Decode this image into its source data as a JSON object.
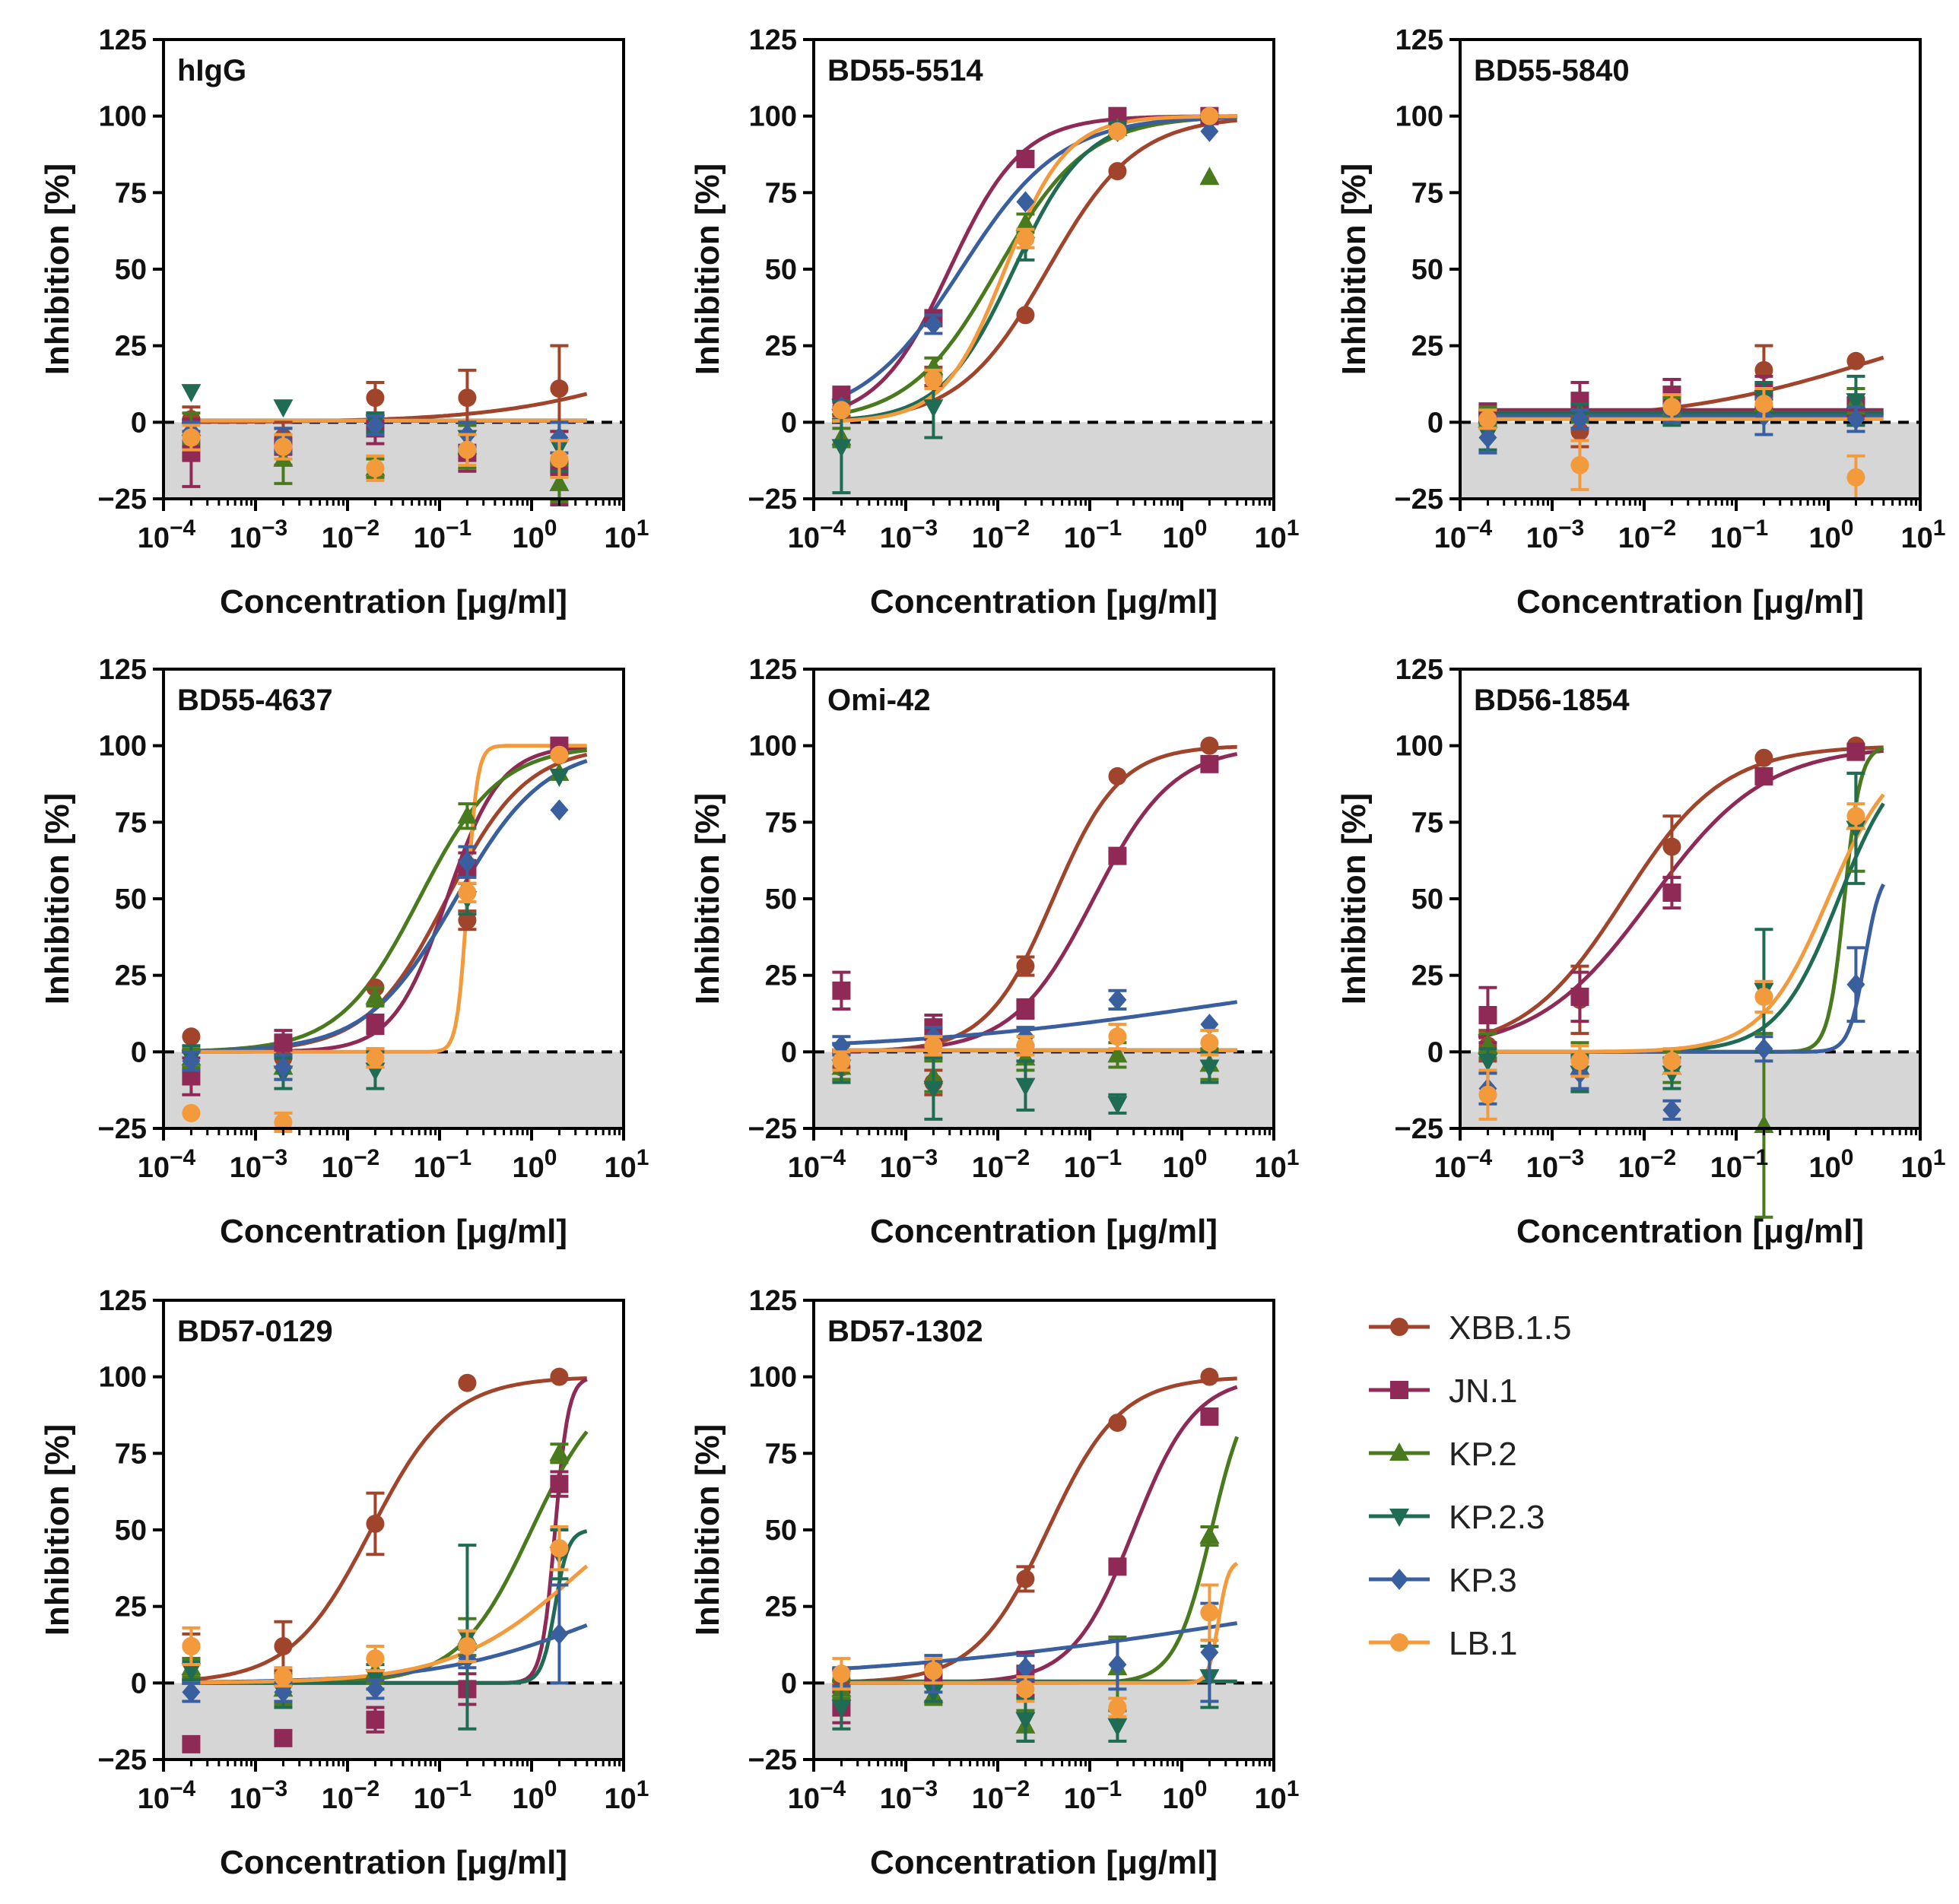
{
  "chart_data": {
    "type": "line",
    "series_styles": [
      {
        "name": "XBB.1.5",
        "color": "#a0442c",
        "marker": "circle"
      },
      {
        "name": "JN.1",
        "color": "#8e2a55",
        "marker": "square"
      },
      {
        "name": "KP.2",
        "color": "#4a7a1e",
        "marker": "triangle-up"
      },
      {
        "name": "KP.2.3",
        "color": "#1f6b54",
        "marker": "triangle-down"
      },
      {
        "name": "KP.3",
        "color": "#3a5f9e",
        "marker": "diamond"
      },
      {
        "name": "LB.1",
        "color": "#f39a3c",
        "marker": "circle"
      }
    ],
    "x_tick_labels": [
      {
        "base": "10",
        "exp": "−4"
      },
      {
        "base": "10",
        "exp": "−3"
      },
      {
        "base": "10",
        "exp": "−2"
      },
      {
        "base": "10",
        "exp": "−1"
      },
      {
        "base": "10",
        "exp": "0"
      },
      {
        "base": "10",
        "exp": "1"
      }
    ],
    "y_ticks": [
      -25,
      0,
      25,
      50,
      75,
      100,
      125
    ],
    "shared": {
      "xlabel": "Concentration [μg/ml]",
      "ylabel": "Inhibition [%]",
      "xscale": "log",
      "xlim_exp": [
        -4,
        1
      ],
      "ylim": [
        -25,
        125
      ],
      "x": [
        0.0002,
        0.002,
        0.02,
        0.2,
        2
      ],
      "shaded_band": [
        -25,
        0
      ],
      "reference_line_y": 0
    },
    "panels": [
      {
        "title": "hIgG",
        "series": [
          {
            "name": "XBB.1.5",
            "values": [
              1,
              -5,
              8,
              8,
              11
            ],
            "errors": [
              4,
              5,
              5,
              9,
              14
            ],
            "ic50": 20,
            "hill": 0.5,
            "top": 30
          },
          {
            "name": "JN.1",
            "values": [
              -10,
              -8,
              -2,
              -10,
              -15
            ],
            "errors": [
              11,
              6,
              5,
              6,
              12
            ],
            "flat": true
          },
          {
            "name": "KP.2",
            "values": [
              -2,
              -12,
              -15,
              -8,
              -20
            ],
            "errors": [
              5,
              8,
              3,
              7,
              6
            ],
            "flat": true
          },
          {
            "name": "KP.2.3",
            "values": [
              10,
              5,
              0,
              -5,
              -8
            ],
            "errors": [
              2,
              2,
              3,
              5,
              8
            ],
            "flat": true
          },
          {
            "name": "KP.3",
            "values": [
              -3,
              -6,
              -1,
              -4,
              -5
            ],
            "errors": [
              3,
              4,
              3,
              4,
              5
            ],
            "flat": true
          },
          {
            "name": "LB.1",
            "values": [
              -5,
              -8,
              -15,
              -9,
              -12
            ],
            "errors": [
              4,
              4,
              4,
              5,
              6
            ],
            "flat": true
          }
        ]
      },
      {
        "title": "BD55-5514",
        "series": [
          {
            "name": "XBB.1.5",
            "values": [
              5,
              15,
              35,
              82,
              100
            ],
            "errors": [
              3,
              3,
              2,
              2,
              1
            ],
            "ic50": 0.035,
            "hill": 0.9
          },
          {
            "name": "JN.1",
            "values": [
              9,
              34,
              86,
              100,
              100
            ],
            "errors": [
              2,
              2,
              2,
              1,
              1
            ],
            "ic50": 0.003,
            "hill": 1.1
          },
          {
            "name": "KP.2",
            "values": [
              -5,
              18,
              65,
              96,
              80
            ],
            "errors": [
              3,
              3,
              3,
              2,
              2
            ],
            "ic50": 0.01,
            "hill": 0.9
          },
          {
            "name": "KP.2.3",
            "values": [
              -8,
              5,
              58,
              96,
              98
            ],
            "errors": [
              15,
              10,
              5,
              2,
              1
            ],
            "ic50": 0.015,
            "hill": 1.1
          },
          {
            "name": "KP.3",
            "values": [
              5,
              32,
              72,
              95,
              95
            ],
            "errors": [
              2,
              3,
              2,
              2,
              1
            ],
            "ic50": 0.004,
            "hill": 0.8
          },
          {
            "name": "LB.1",
            "values": [
              4,
              14,
              60,
              95,
              100
            ],
            "errors": [
              2,
              3,
              3,
              2,
              1
            ],
            "ic50": 0.012,
            "hill": 1.3
          }
        ]
      },
      {
        "title": "BD55-5840",
        "series": [
          {
            "name": "XBB.1.5",
            "values": [
              1,
              -3,
              8,
              17,
              20
            ],
            "errors": [
              2,
              5,
              6,
              8,
              2
            ],
            "ic50": 3,
            "hill": 0.4,
            "top": 40
          },
          {
            "name": "JN.1",
            "values": [
              3,
              7,
              9,
              10,
              5
            ],
            "errors": [
              3,
              6,
              5,
              5,
              3
            ],
            "flat": true,
            "level": 4
          },
          {
            "name": "KP.2",
            "values": [
              2,
              3,
              5,
              6,
              7
            ],
            "errors": [
              3,
              3,
              3,
              4,
              4
            ],
            "flat": true,
            "level": 3
          },
          {
            "name": "KP.2.3",
            "values": [
              -4,
              2,
              2,
              8,
              7
            ],
            "errors": [
              5,
              4,
              3,
              5,
              8
            ],
            "flat": true,
            "level": 3
          },
          {
            "name": "KP.3",
            "values": [
              -5,
              1,
              3,
              2,
              1
            ],
            "errors": [
              5,
              3,
              3,
              6,
              4
            ],
            "flat": true,
            "level": 2
          },
          {
            "name": "LB.1",
            "values": [
              1,
              -14,
              5,
              6,
              -18
            ],
            "errors": [
              3,
              8,
              4,
              5,
              7
            ],
            "flat": true,
            "level": 1
          }
        ]
      },
      {
        "title": "BD55-4637",
        "series": [
          {
            "name": "XBB.1.5",
            "values": [
              5,
              -2,
              21,
              43,
              97
            ],
            "errors": [
              2,
              3,
              2,
              3,
              2
            ],
            "ic50": 0.12,
            "hill": 1.0
          },
          {
            "name": "JN.1",
            "values": [
              -8,
              3,
              9,
              60,
              100
            ],
            "errors": [
              6,
              4,
              3,
              5,
              2
            ],
            "ic50": 0.12,
            "hill": 1.5
          },
          {
            "name": "KP.2",
            "values": [
              -2,
              -5,
              18,
              77,
              91
            ],
            "errors": [
              3,
              4,
              3,
              4,
              2
            ],
            "ic50": 0.06,
            "hill": 1.0
          },
          {
            "name": "KP.2.3",
            "values": [
              -2,
              -7,
              -6,
              50,
              90
            ],
            "errors": [
              4,
              5,
              6,
              5,
              2
            ],
            "ic50": 0.15,
            "hill": 0.9
          },
          {
            "name": "KP.3",
            "values": [
              -3,
              -5,
              -2,
              62,
              79
            ],
            "errors": [
              3,
              4,
              3,
              5,
              2
            ],
            "ic50": 0.15,
            "hill": 0.9
          },
          {
            "name": "LB.1",
            "values": [
              -20,
              -23,
              -2,
              52,
              97
            ],
            "errors": [
              2,
              3,
              3,
              3,
              2
            ],
            "ic50": 0.2,
            "hill": 8
          }
        ]
      },
      {
        "title": "Omi-42",
        "series": [
          {
            "name": "XBB.1.5",
            "values": [
              -5,
              -10,
              28,
              90,
              100
            ],
            "errors": [
              4,
              4,
              3,
              1,
              1
            ],
            "ic50": 0.04,
            "hill": 1.2
          },
          {
            "name": "JN.1",
            "values": [
              20,
              8,
              14,
              64,
              94
            ],
            "errors": [
              6,
              4,
              3,
              2,
              2
            ],
            "ic50": 0.11,
            "hill": 1.0
          },
          {
            "name": "KP.2",
            "values": [
              -5,
              -8,
              -2,
              -1,
              -4
            ],
            "errors": [
              4,
              5,
              4,
              4,
              5
            ],
            "flat": true
          },
          {
            "name": "KP.2.3",
            "values": [
              -5,
              -12,
              -11,
              -17,
              -5
            ],
            "errors": [
              5,
              10,
              8,
              3,
              5
            ],
            "flat": true
          },
          {
            "name": "KP.3",
            "values": [
              2,
              5,
              5,
              17,
              9
            ],
            "errors": [
              3,
              3,
              3,
              3,
              2
            ],
            "ic50": 2,
            "hill": 0.25,
            "top": 30
          },
          {
            "name": "LB.1",
            "values": [
              -3,
              2,
              2,
              5,
              3
            ],
            "errors": [
              3,
              3,
              3,
              4,
              4
            ],
            "flat": true
          }
        ]
      },
      {
        "title": "BD56-1854",
        "series": [
          {
            "name": "XBB.1.5",
            "values": [
              2,
              17,
              67,
              96,
              100
            ],
            "errors": [
              5,
              11,
              10,
              1,
              1
            ],
            "ic50": 0.006,
            "hill": 0.8
          },
          {
            "name": "JN.1",
            "values": [
              12,
              18,
              52,
              90,
              98
            ],
            "errors": [
              9,
              8,
              5,
              2,
              2
            ],
            "ic50": 0.012,
            "hill": 0.7
          },
          {
            "name": "KP.2",
            "values": [
              2,
              -5,
              -5,
              -24,
              75
            ],
            "errors": [
              4,
              8,
              5,
              30,
              16
            ],
            "ic50": 1.5,
            "hill": 5
          },
          {
            "name": "KP.2.3",
            "values": [
              -3,
              -7,
              -7,
              20,
              73
            ],
            "errors": [
              4,
              6,
              5,
              20,
              18
            ],
            "ic50": 1.3,
            "hill": 1.3
          },
          {
            "name": "KP.3",
            "values": [
              -12,
              -7,
              -19,
              1,
              22
            ],
            "errors": [
              5,
              5,
              3,
              4,
              12
            ],
            "ic50": 2.5,
            "hill": 5,
            "top": 60
          },
          {
            "name": "LB.1",
            "values": [
              -14,
              -3,
              -3,
              18,
              77
            ],
            "errors": [
              8,
              5,
              4,
              5,
              4
            ],
            "ic50": 1.0,
            "hill": 1.2
          }
        ]
      },
      {
        "title": "BD57-0129",
        "series": [
          {
            "name": "XBB.1.5",
            "values": [
              12,
              12,
              52,
              98,
              100
            ],
            "errors": [
              4,
              8,
              10,
              1,
              1
            ],
            "ic50": 0.018,
            "hill": 1.0
          },
          {
            "name": "JN.1",
            "values": [
              -20,
              -18,
              -12,
              -2,
              65
            ],
            "errors": [
              2,
              2,
              4,
              5,
              4
            ],
            "ic50": 1.8,
            "hill": 6
          },
          {
            "name": "KP.2",
            "values": [
              5,
              -2,
              4,
              15,
              75
            ],
            "errors": [
              3,
              5,
              4,
              6,
              3
            ],
            "ic50": 1.0,
            "hill": 1.1
          },
          {
            "name": "KP.2.3",
            "values": [
              4,
              -3,
              2,
              15,
              42
            ],
            "errors": [
              3,
              5,
              4,
              30,
              8
            ],
            "ic50": 1.8,
            "hill": 6,
            "top": 50
          },
          {
            "name": "KP.3",
            "values": [
              -3,
              -3,
              -2,
              8,
              16
            ],
            "errors": [
              3,
              3,
              3,
              3,
              16
            ],
            "ic50": 5,
            "hill": 0.5,
            "top": 40
          },
          {
            "name": "LB.1",
            "values": [
              12,
              2,
              8,
              12,
              44
            ],
            "errors": [
              6,
              3,
              4,
              5,
              7
            ],
            "ic50": 3,
            "hill": 0.65,
            "top": 70
          }
        ]
      },
      {
        "title": "BD57-1302",
        "series": [
          {
            "name": "XBB.1.5",
            "values": [
              1,
              3,
              34,
              85,
              100
            ],
            "errors": [
              3,
              3,
              4,
              2,
              1
            ],
            "ic50": 0.035,
            "hill": 1.1
          },
          {
            "name": "JN.1",
            "values": [
              -8,
              2,
              3,
              38,
              87
            ],
            "errors": [
              5,
              3,
              7,
              2,
              2
            ],
            "ic50": 0.3,
            "hill": 1.3
          },
          {
            "name": "KP.2",
            "values": [
              -2,
              -4,
              -14,
              5,
              48
            ],
            "errors": [
              3,
              3,
              5,
              10,
              3
            ],
            "ic50": 2.1,
            "hill": 2.2
          },
          {
            "name": "KP.2.3",
            "values": [
              -8,
              -3,
              -12,
              -14,
              2
            ],
            "errors": [
              7,
              3,
              7,
              5,
              10
            ],
            "flat": true
          },
          {
            "name": "KP.3",
            "values": [
              2,
              3,
              5,
              6,
              10
            ],
            "errors": [
              3,
              6,
              4,
              8,
              16
            ],
            "ic50": 5,
            "hill": 0.2,
            "top": 40
          },
          {
            "name": "LB.1",
            "values": [
              3,
              4,
              -2,
              -8,
              23
            ],
            "errors": [
              5,
              4,
              4,
              3,
              9
            ],
            "ic50": 2.5,
            "hill": 8,
            "top": 40
          }
        ]
      }
    ]
  }
}
